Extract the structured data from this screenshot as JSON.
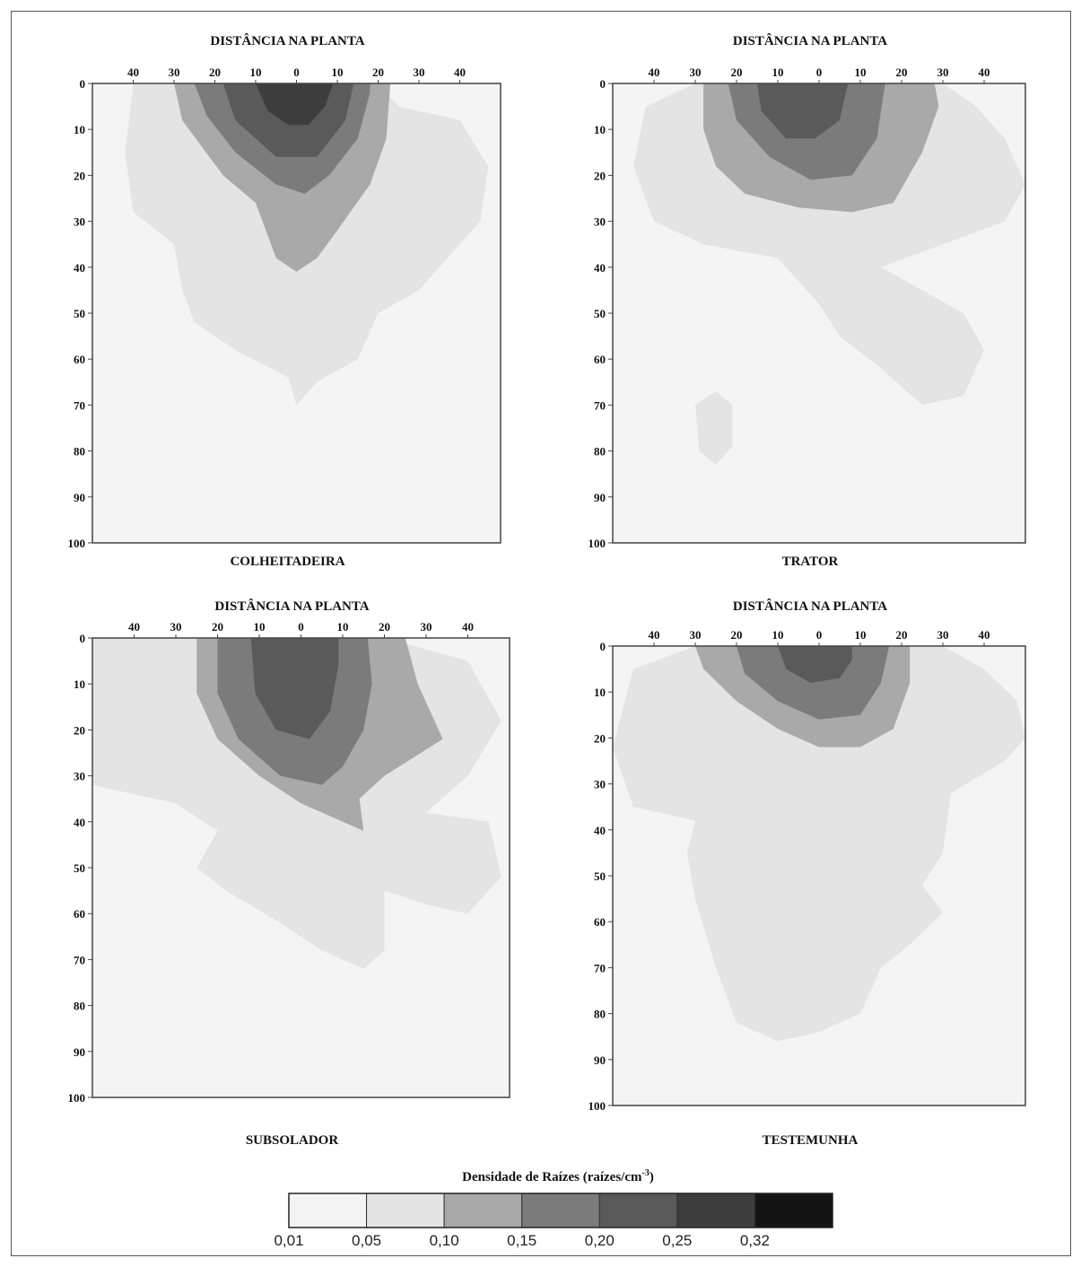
{
  "chart_data": [
    {
      "type": "heatmap",
      "title": "DISTÂNCIA NA PLANTA",
      "label": "COLHEITADEIRA",
      "x_ticks": [
        40,
        30,
        20,
        10,
        0,
        10,
        20,
        30,
        40
      ],
      "y_ticks": [
        0,
        10,
        20,
        30,
        40,
        50,
        60,
        70,
        80,
        90,
        100
      ],
      "xlim": [
        -50,
        50
      ],
      "ylim": [
        0,
        100
      ],
      "zones": [
        {
          "class": 1,
          "points": [
            [
              -40,
              0
            ],
            [
              -20,
              0
            ],
            [
              20,
              0
            ],
            [
              25,
              5
            ],
            [
              40,
              8
            ],
            [
              47,
              18
            ],
            [
              45,
              30
            ],
            [
              30,
              45
            ],
            [
              20,
              50
            ],
            [
              15,
              60
            ],
            [
              5,
              65
            ],
            [
              0,
              70
            ],
            [
              -2,
              64
            ],
            [
              -15,
              58
            ],
            [
              -25,
              52
            ],
            [
              -28,
              45
            ],
            [
              -30,
              35
            ],
            [
              -40,
              28
            ],
            [
              -42,
              15
            ]
          ]
        },
        {
          "class": 2,
          "points": [
            [
              -30,
              0
            ],
            [
              -28,
              8
            ],
            [
              -18,
              20
            ],
            [
              -10,
              26
            ],
            [
              -5,
              38
            ],
            [
              0,
              41
            ],
            [
              5,
              38
            ],
            [
              10,
              32
            ],
            [
              18,
              22
            ],
            [
              22,
              12
            ],
            [
              23,
              0
            ]
          ]
        },
        {
          "class": 3,
          "points": [
            [
              -25,
              0
            ],
            [
              -22,
              7
            ],
            [
              -15,
              15
            ],
            [
              -5,
              22
            ],
            [
              2,
              24
            ],
            [
              8,
              20
            ],
            [
              15,
              12
            ],
            [
              18,
              2
            ],
            [
              18,
              0
            ]
          ]
        },
        {
          "class": 4,
          "points": [
            [
              -18,
              0
            ],
            [
              -15,
              8
            ],
            [
              -5,
              16
            ],
            [
              5,
              16
            ],
            [
              12,
              8
            ],
            [
              14,
              0
            ]
          ]
        },
        {
          "class": 5,
          "points": [
            [
              -10,
              0
            ],
            [
              -7,
              6
            ],
            [
              -2,
              9
            ],
            [
              3,
              9
            ],
            [
              7,
              5
            ],
            [
              9,
              0
            ]
          ]
        }
      ]
    },
    {
      "type": "heatmap",
      "title": "DISTÂNCIA NA PLANTA",
      "label": "TRATOR",
      "x_ticks": [
        40,
        30,
        20,
        10,
        0,
        10,
        20,
        30,
        40
      ],
      "y_ticks": [
        0,
        10,
        20,
        30,
        40,
        50,
        60,
        70,
        80,
        90,
        100
      ],
      "xlim": [
        -50,
        50
      ],
      "ylim": [
        0,
        100
      ],
      "zones": [
        {
          "class": 1,
          "points": [
            [
              -42,
              5
            ],
            [
              -30,
              0
            ],
            [
              30,
              0
            ],
            [
              38,
              5
            ],
            [
              45,
              12
            ],
            [
              50,
              22
            ],
            [
              45,
              30
            ],
            [
              30,
              35
            ],
            [
              15,
              40
            ],
            [
              25,
              45
            ],
            [
              35,
              50
            ],
            [
              40,
              58
            ],
            [
              35,
              68
            ],
            [
              25,
              70
            ],
            [
              15,
              62
            ],
            [
              5,
              55
            ],
            [
              0,
              48
            ],
            [
              -10,
              38
            ],
            [
              -28,
              35
            ],
            [
              -40,
              30
            ],
            [
              -45,
              18
            ]
          ]
        },
        {
          "class": 1,
          "points": [
            [
              -30,
              70
            ],
            [
              -25,
              67
            ],
            [
              -21,
              70
            ],
            [
              -21,
              79
            ],
            [
              -25,
              83
            ],
            [
              -29,
              80
            ]
          ]
        },
        {
          "class": 2,
          "points": [
            [
              -28,
              0
            ],
            [
              -28,
              10
            ],
            [
              -25,
              18
            ],
            [
              -18,
              24
            ],
            [
              -5,
              27
            ],
            [
              8,
              28
            ],
            [
              18,
              26
            ],
            [
              25,
              15
            ],
            [
              29,
              5
            ],
            [
              28,
              0
            ]
          ]
        },
        {
          "class": 3,
          "points": [
            [
              -22,
              0
            ],
            [
              -20,
              8
            ],
            [
              -12,
              16
            ],
            [
              -2,
              21
            ],
            [
              8,
              20
            ],
            [
              14,
              12
            ],
            [
              16,
              0
            ]
          ]
        },
        {
          "class": 4,
          "points": [
            [
              -15,
              0
            ],
            [
              -14,
              6
            ],
            [
              -8,
              12
            ],
            [
              -1,
              12
            ],
            [
              5,
              8
            ],
            [
              7,
              0
            ]
          ]
        }
      ]
    },
    {
      "type": "heatmap",
      "title": "DISTÂNCIA NA PLANTA",
      "label": "SUBSOLADOR",
      "x_ticks": [
        40,
        30,
        20,
        10,
        0,
        10,
        20,
        30,
        40
      ],
      "y_ticks": [
        0,
        10,
        20,
        30,
        40,
        50,
        60,
        70,
        80,
        90,
        100
      ],
      "xlim": [
        -50,
        50
      ],
      "ylim": [
        0,
        100
      ],
      "zones": [
        {
          "class": 1,
          "points": [
            [
              -50,
              0
            ],
            [
              -20,
              0
            ],
            [
              20,
              0
            ],
            [
              40,
              5
            ],
            [
              48,
              18
            ],
            [
              40,
              30
            ],
            [
              30,
              38
            ],
            [
              45,
              40
            ],
            [
              48,
              52
            ],
            [
              40,
              60
            ],
            [
              30,
              58
            ],
            [
              20,
              55
            ],
            [
              20,
              68
            ],
            [
              15,
              72
            ],
            [
              5,
              68
            ],
            [
              -5,
              62
            ],
            [
              -18,
              55
            ],
            [
              -25,
              50
            ],
            [
              -20,
              42
            ],
            [
              -30,
              36
            ],
            [
              -50,
              32
            ]
          ]
        },
        {
          "class": 2,
          "points": [
            [
              -25,
              0
            ],
            [
              -25,
              12
            ],
            [
              -20,
              22
            ],
            [
              -10,
              30
            ],
            [
              0,
              36
            ],
            [
              10,
              40
            ],
            [
              15,
              42
            ],
            [
              14,
              35
            ],
            [
              20,
              30
            ],
            [
              34,
              22
            ],
            [
              28,
              10
            ],
            [
              25,
              0
            ]
          ]
        },
        {
          "class": 3,
          "points": [
            [
              -20,
              0
            ],
            [
              -20,
              12
            ],
            [
              -15,
              22
            ],
            [
              -5,
              30
            ],
            [
              5,
              32
            ],
            [
              10,
              28
            ],
            [
              15,
              20
            ],
            [
              17,
              10
            ],
            [
              16,
              0
            ]
          ]
        },
        {
          "class": 4,
          "points": [
            [
              -12,
              0
            ],
            [
              -11,
              12
            ],
            [
              -6,
              20
            ],
            [
              2,
              22
            ],
            [
              7,
              16
            ],
            [
              9,
              6
            ],
            [
              9,
              0
            ]
          ]
        }
      ]
    },
    {
      "type": "heatmap",
      "title": "DISTÂNCIA NA PLANTA",
      "label": "TESTEMUNHA",
      "x_ticks": [
        40,
        30,
        20,
        10,
        0,
        10,
        20,
        30,
        40
      ],
      "y_ticks": [
        0,
        10,
        20,
        30,
        40,
        50,
        60,
        70,
        80,
        90,
        100
      ],
      "xlim": [
        -50,
        50
      ],
      "ylim": [
        0,
        100
      ],
      "zones": [
        {
          "class": 1,
          "points": [
            [
              -45,
              5
            ],
            [
              -30,
              0
            ],
            [
              30,
              0
            ],
            [
              40,
              5
            ],
            [
              48,
              12
            ],
            [
              50,
              20
            ],
            [
              45,
              25
            ],
            [
              32,
              32
            ],
            [
              30,
              45
            ],
            [
              25,
              52
            ],
            [
              30,
              58
            ],
            [
              22,
              65
            ],
            [
              15,
              70
            ],
            [
              10,
              80
            ],
            [
              0,
              84
            ],
            [
              -10,
              86
            ],
            [
              -20,
              82
            ],
            [
              -25,
              70
            ],
            [
              -30,
              55
            ],
            [
              -32,
              45
            ],
            [
              -30,
              38
            ],
            [
              -45,
              35
            ],
            [
              -50,
              22
            ]
          ]
        },
        {
          "class": 2,
          "points": [
            [
              -30,
              0
            ],
            [
              -28,
              5
            ],
            [
              -20,
              12
            ],
            [
              -10,
              18
            ],
            [
              0,
              22
            ],
            [
              10,
              22
            ],
            [
              18,
              18
            ],
            [
              22,
              8
            ],
            [
              22,
              0
            ]
          ]
        },
        {
          "class": 3,
          "points": [
            [
              -20,
              0
            ],
            [
              -18,
              6
            ],
            [
              -10,
              12
            ],
            [
              0,
              16
            ],
            [
              10,
              15
            ],
            [
              15,
              8
            ],
            [
              17,
              0
            ]
          ]
        },
        {
          "class": 4,
          "points": [
            [
              -10,
              0
            ],
            [
              -8,
              5
            ],
            [
              -2,
              8
            ],
            [
              5,
              7
            ],
            [
              8,
              3
            ],
            [
              8,
              0
            ]
          ]
        }
      ]
    }
  ],
  "legend": {
    "title_main": "Densidade de Raízes (raízes/cm",
    "title_sup": "-3",
    "title_end": ")",
    "labels": [
      "0,01",
      "0,05",
      "0,10",
      "0,15",
      "0,20",
      "0,25",
      "0,32"
    ],
    "colors": [
      "#f4f4f4",
      "#e4e4e4",
      "#a9a9a9",
      "#7b7b7b",
      "#5a5a5a",
      "#3d3d3d",
      "#141414"
    ]
  }
}
